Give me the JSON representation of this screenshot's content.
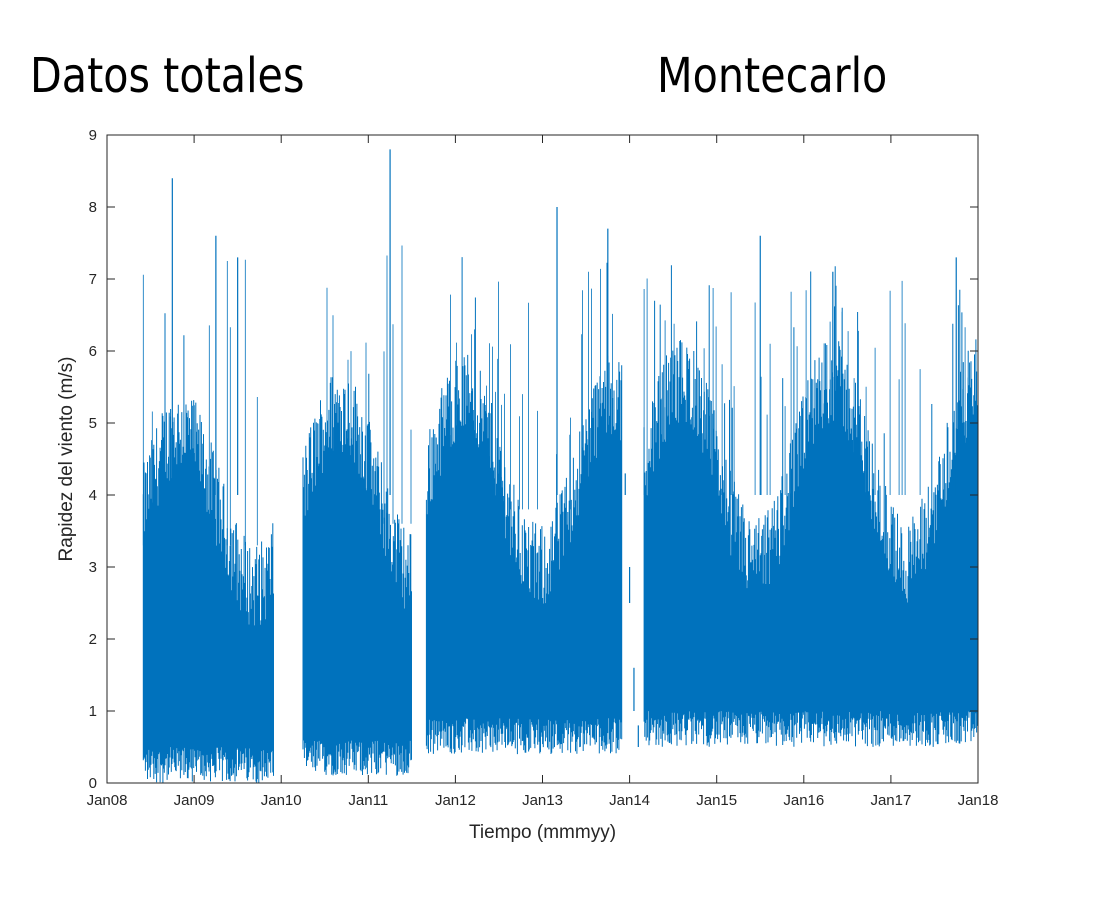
{
  "header": {
    "left_title": "Datos totales",
    "right_title": "Montecarlo"
  },
  "chart_data": {
    "type": "line",
    "title": "",
    "xlabel": "Tiempo (mmmyy)",
    "ylabel": "Rapidez del viento (m/s)",
    "xlim": [
      "2008-01",
      "2018-01"
    ],
    "ylim": [
      0,
      9
    ],
    "x_ticks": [
      "Jan08",
      "Jan09",
      "Jan10",
      "Jan11",
      "Jan12",
      "Jan13",
      "Jan14",
      "Jan15",
      "Jan16",
      "Jan17",
      "Jan18"
    ],
    "y_ticks": [
      0,
      1,
      2,
      3,
      4,
      5,
      6,
      7,
      8,
      9
    ],
    "grid": false,
    "series": [
      {
        "color": "#0072BD",
        "segments": [
          {
            "start": "2008-06",
            "end": "2009-12",
            "base_max": 4.3,
            "peak": 8.4,
            "min_floor": 0.0
          },
          {
            "start": "2010-04",
            "end": "2011-07",
            "base_max": 4.6,
            "peak": 8.8,
            "min_floor": 0.1
          },
          {
            "start": "2011-09",
            "end": "2013-12",
            "base_max": 4.8,
            "peak": 8.0,
            "min_floor": 0.4
          },
          {
            "start": "2014-03",
            "end": "2018-01",
            "base_max": 5.0,
            "peak": 7.7,
            "min_floor": 0.5
          }
        ],
        "annotated_peaks": [
          {
            "x": "2008-10",
            "y": 8.4
          },
          {
            "x": "2009-04",
            "y": 7.6
          },
          {
            "x": "2009-07",
            "y": 7.3
          },
          {
            "x": "2011-04",
            "y": 8.8
          },
          {
            "x": "2013-03",
            "y": 8.0
          },
          {
            "x": "2013-10",
            "y": 7.7
          },
          {
            "x": "2015-07",
            "y": 7.6
          },
          {
            "x": "2016-05",
            "y": 7.1
          },
          {
            "x": "2017-10",
            "y": 7.3
          }
        ]
      }
    ]
  }
}
